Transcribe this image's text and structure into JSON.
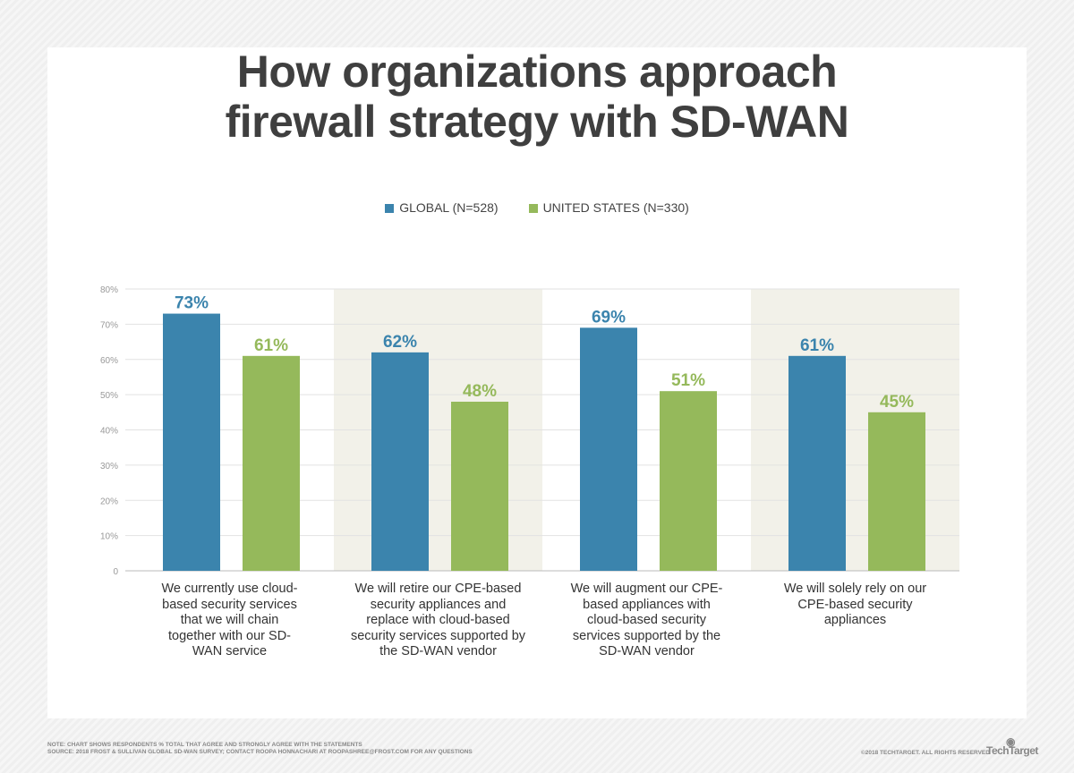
{
  "chart_data": {
    "type": "bar",
    "title": "How organizations approach firewall strategy with SD-WAN",
    "title_lines": [
      "How organizations approach",
      "firewall strategy with SD-WAN"
    ],
    "categories": [
      "We currently use cloud-based security services that we will chain together with our SD-WAN service",
      "We will retire our CPE-based security appliances and replace with cloud-based security services supported by the SD-WAN vendor",
      "We will augment our CPE-based appliances with cloud-based security services supported by the SD-WAN vendor",
      "We will solely rely on our CPE-based security appliances"
    ],
    "series": [
      {
        "name": "GLOBAL (N=528)",
        "color": "#3b84ad",
        "values": [
          73,
          62,
          69,
          61
        ]
      },
      {
        "name": "UNITED STATES (N=330)",
        "color": "#95b95b",
        "values": [
          61,
          48,
          51,
          45
        ]
      }
    ],
    "data_labels": [
      [
        "73%",
        "62%",
        "69%",
        "61%"
      ],
      [
        "61%",
        "48%",
        "51%",
        "45%"
      ]
    ],
    "yticks": [
      "0",
      "10%",
      "20%",
      "30%",
      "40%",
      "50%",
      "60%",
      "70%",
      "80%"
    ],
    "ylim": [
      0,
      80
    ],
    "grid": true,
    "legend": "top-center",
    "shaded_band_color": "#f2f1e9"
  },
  "footer": {
    "note": "NOTE: CHART SHOWS RESPONDENTS % TOTAL THAT AGREE AND STRONGLY AGREE WITH THE STATEMENTS",
    "source": "SOURCE: 2018 FROST & SULLIVAN GLOBAL SD-WAN SURVEY; CONTACT ROOPA HONNACHARI AT ROOPASHREE@FROST.COM FOR ANY QUESTIONS",
    "copyright": "©2018 TECHTARGET. ALL RIGHTS RESERVED",
    "logo": "TechTarget"
  }
}
